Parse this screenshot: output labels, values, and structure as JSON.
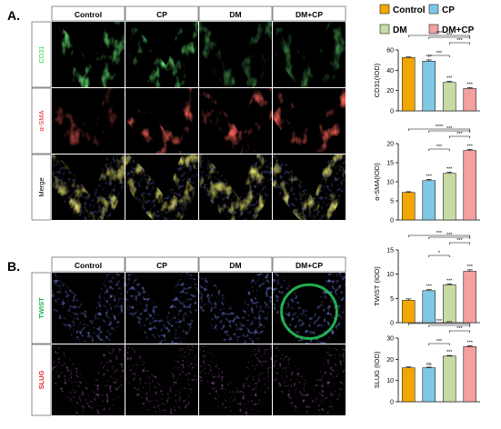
{
  "panels": {
    "a_label": "A.",
    "b_label": "B."
  },
  "panel_a": {
    "columns": [
      "Control",
      "CP",
      "DM",
      "DM+CP"
    ],
    "rows": [
      {
        "label": "CD31",
        "color": "#2ecc40"
      },
      {
        "label": "α-SMA",
        "color": "#e0282c"
      },
      {
        "label": "Merge",
        "color": "#000000"
      }
    ]
  },
  "panel_b": {
    "columns": [
      "Control",
      "CP",
      "DM",
      "DM+CP"
    ],
    "rows": [
      {
        "label": "TWIST",
        "color": "#18b84a"
      },
      {
        "label": "SLUG",
        "color": "#e0282c"
      }
    ]
  },
  "legend": {
    "items": [
      {
        "label": "Control",
        "color": "#f3a600"
      },
      {
        "label": "CP",
        "color": "#7ec8e3"
      },
      {
        "label": "DM",
        "color": "#c6dca2"
      },
      {
        "label": "DM+CP",
        "color": "#f2a0a0"
      }
    ]
  },
  "chart_data": [
    {
      "type": "bar",
      "categories": [
        "Control",
        "CP",
        "DM",
        "DM+CP"
      ],
      "values": [
        52.5,
        49,
        28,
        22
      ],
      "errors": [
        0.6,
        1.2,
        1.0,
        0.8
      ],
      "ylabel": "CD31(IOD)",
      "ylim": [
        0,
        60
      ],
      "yticks": [
        "0",
        "20",
        "40",
        "60"
      ],
      "stars_above_bars": [
        "",
        "***",
        "***",
        "***"
      ],
      "comparisons": [
        {
          "from": 1,
          "to": 2,
          "label": "***"
        },
        {
          "from": 1,
          "to": 3,
          "label": "***"
        },
        {
          "from": 0,
          "to": 3,
          "label": "***"
        },
        {
          "from": 2,
          "to": 3,
          "label": "***"
        }
      ]
    },
    {
      "type": "bar",
      "categories": [
        "Control",
        "CP",
        "DM",
        "DM+CP"
      ],
      "values": [
        7.2,
        10.3,
        12.2,
        18.2
      ],
      "errors": [
        0.2,
        0.3,
        0.3,
        0.3
      ],
      "ylabel": "α-SMA(IOD)",
      "ylim": [
        0,
        20
      ],
      "yticks": [
        "0",
        "5",
        "10",
        "15",
        "20"
      ],
      "stars_above_bars": [
        "",
        "***",
        "***",
        "***"
      ],
      "comparisons": [
        {
          "from": 1,
          "to": 2,
          "label": "***"
        },
        {
          "from": 2,
          "to": 3,
          "label": "***"
        },
        {
          "from": 1,
          "to": 3,
          "label": "***"
        },
        {
          "from": 0,
          "to": 3,
          "label": "****"
        }
      ]
    },
    {
      "type": "bar",
      "categories": [
        "Control",
        "CP",
        "DM",
        "DM+CP"
      ],
      "values": [
        4.6,
        6.6,
        7.8,
        10.6
      ],
      "errors": [
        0.3,
        0.2,
        0.2,
        0.3
      ],
      "ylabel": "TWIST (IOD)",
      "ylim": [
        0,
        15
      ],
      "yticks": [
        "0",
        "5",
        "10",
        "15"
      ],
      "stars_above_bars": [
        "",
        "***",
        "***",
        "***"
      ],
      "comparisons": [
        {
          "from": 1,
          "to": 2,
          "label": "*"
        },
        {
          "from": 1,
          "to": 3,
          "label": "***"
        },
        {
          "from": 2,
          "to": 3,
          "label": "***"
        },
        {
          "from": 0,
          "to": 3,
          "label": "***"
        }
      ]
    },
    {
      "type": "bar",
      "categories": [
        "Control",
        "CP",
        "DM",
        "DM+CP"
      ],
      "values": [
        16,
        16,
        21.5,
        26
      ],
      "errors": [
        0.4,
        0.3,
        0.3,
        0.4
      ],
      "ylabel": "SLUG (IOD)",
      "ylim": [
        0,
        30
      ],
      "yticks": [
        "0",
        "10",
        "20",
        "30"
      ],
      "stars_above_bars": [
        "",
        "ns",
        "***",
        "***"
      ],
      "comparisons": [
        {
          "from": 1,
          "to": 2,
          "label": "***"
        },
        {
          "from": 2,
          "to": 3,
          "label": "***"
        },
        {
          "from": 1,
          "to": 3,
          "label": "***"
        },
        {
          "from": 0,
          "to": 3,
          "label": "***"
        }
      ]
    }
  ]
}
